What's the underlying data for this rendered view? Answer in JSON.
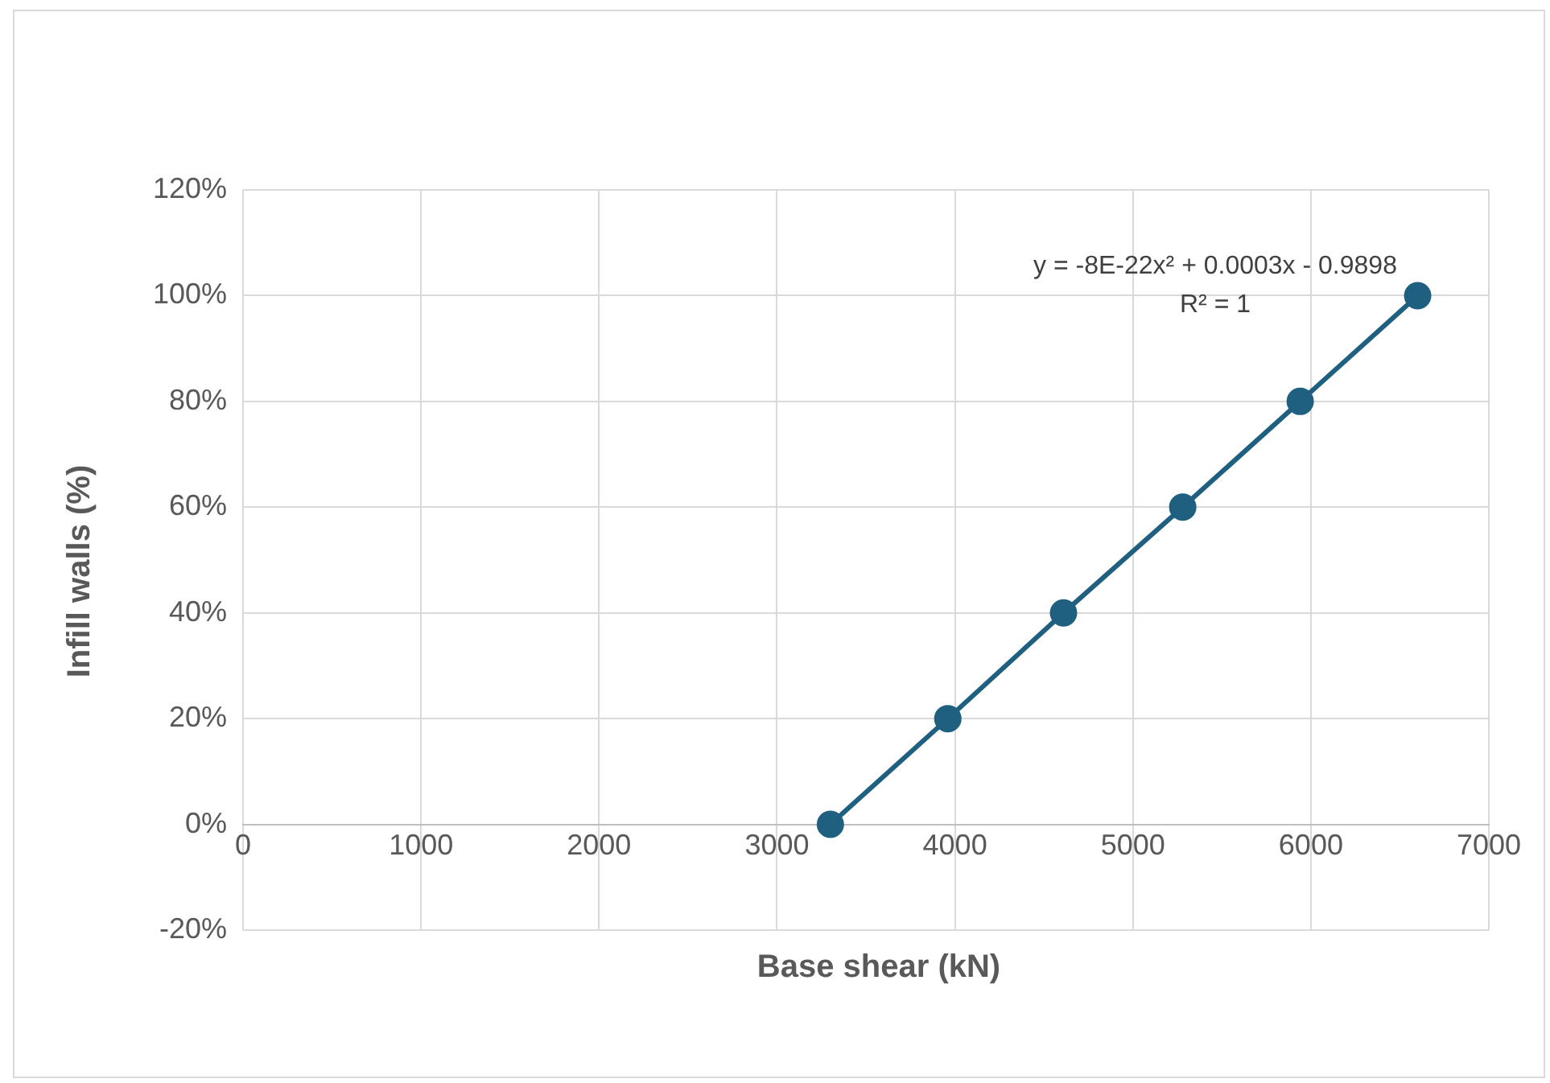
{
  "chart_data": {
    "type": "line",
    "xlabel": "Base shear (kN)",
    "ylabel": "Infill walls (%)",
    "x": [
      3300,
      3960,
      4610,
      5280,
      5940,
      6600
    ],
    "series": [
      {
        "color": "#1f5f80",
        "values": [
          0,
          20,
          40,
          60,
          80,
          100
        ]
      }
    ],
    "xlim": [
      0,
      7000
    ],
    "xticks": [
      0,
      1000,
      2000,
      3000,
      4000,
      5000,
      6000,
      7000
    ],
    "ylim": [
      -20,
      120
    ],
    "yticks": [
      {
        "value": -20,
        "label": "-20%"
      },
      {
        "value": 0,
        "label": "0%"
      },
      {
        "value": 20,
        "label": "20%"
      },
      {
        "value": 40,
        "label": "40%"
      },
      {
        "value": 60,
        "label": "60%"
      },
      {
        "value": 80,
        "label": "80%"
      },
      {
        "value": 100,
        "label": "100%"
      },
      {
        "value": 120,
        "label": "120%"
      }
    ],
    "grid": true,
    "legend": false,
    "marker": "circle",
    "line_style": "solid",
    "annotations": [
      "y = -8E-22x² + 0.0003x - 0.9898",
      "R² = 1"
    ]
  }
}
